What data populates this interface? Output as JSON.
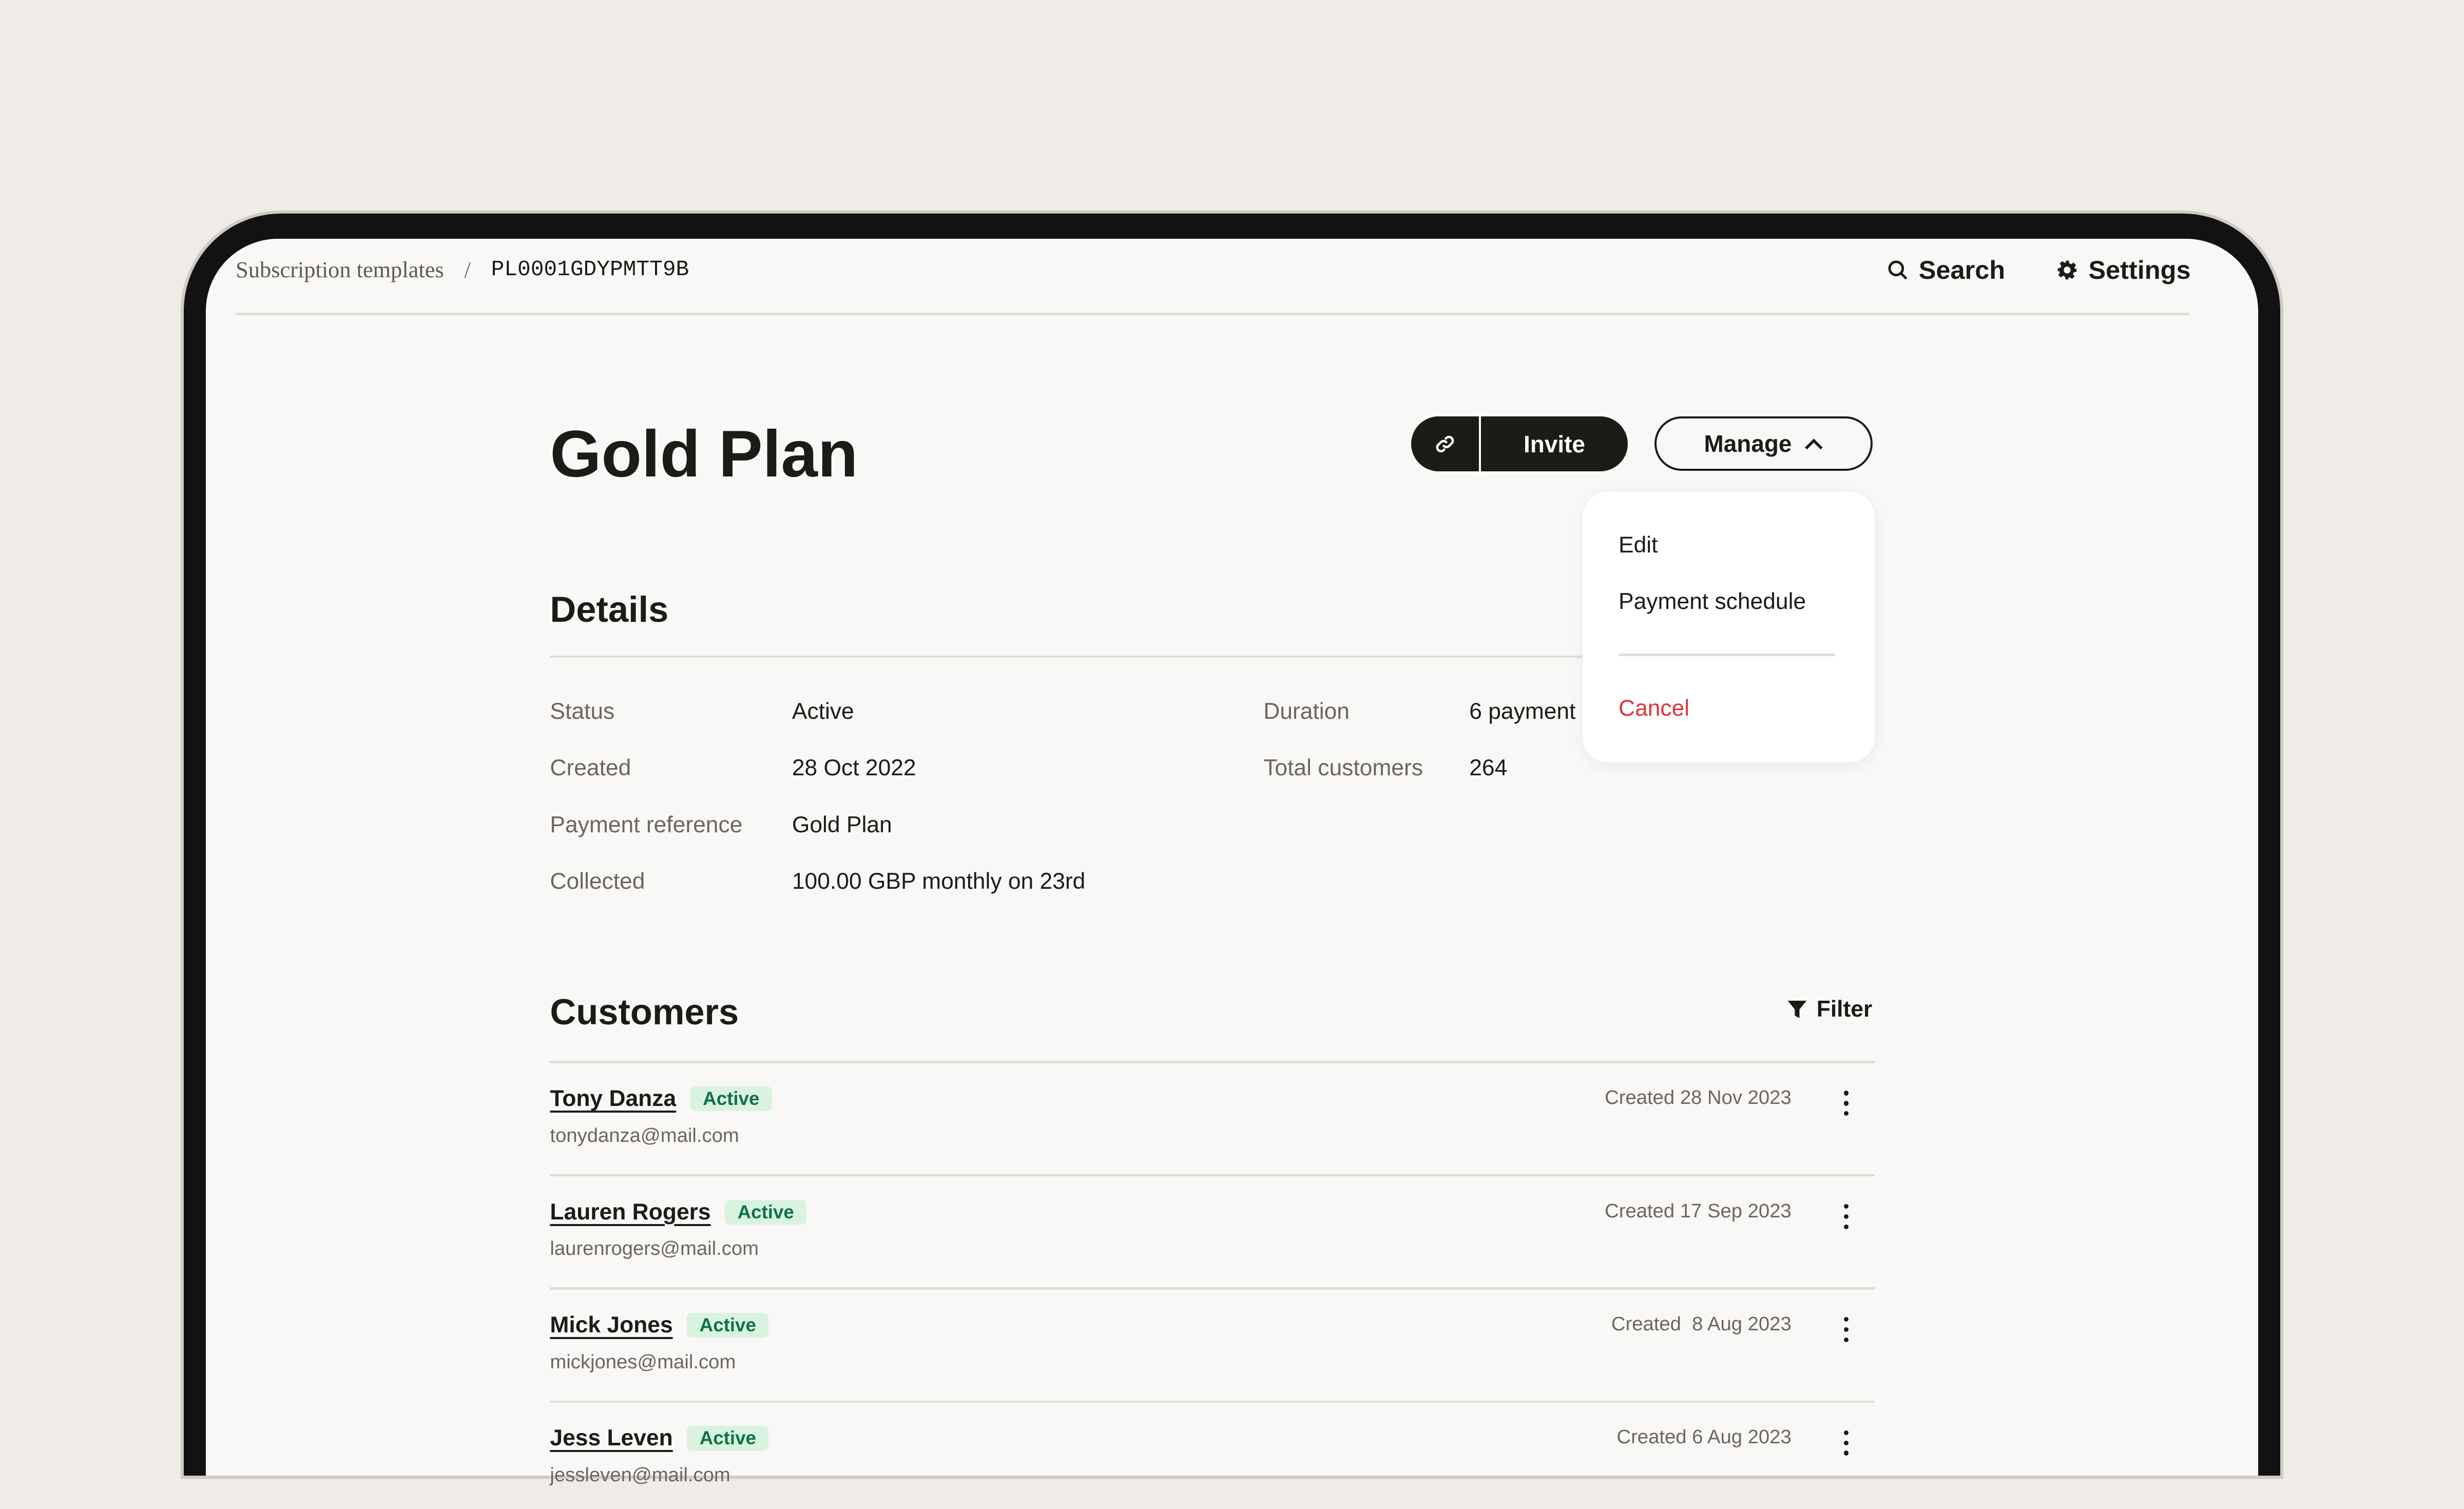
{
  "breadcrumb": {
    "parent": "Subscription templates",
    "separator": "/",
    "current": "PL0001GDYPMTT9B"
  },
  "topbar": {
    "search_label": "Search",
    "settings_label": "Settings"
  },
  "page": {
    "title": "Gold Plan"
  },
  "actions": {
    "invite_label": "Invite",
    "manage_label": "Manage"
  },
  "manage_menu": {
    "items": [
      "Edit",
      "Payment schedule"
    ],
    "danger_item": "Cancel",
    "danger_color": "#d9363e"
  },
  "details": {
    "heading": "Details",
    "left": [
      {
        "label": "Status",
        "value": "Active"
      },
      {
        "label": "Created",
        "value": "28 Oct 2022"
      },
      {
        "label": "Payment reference",
        "value": "Gold Plan"
      },
      {
        "label": "Collected",
        "value": "100.00 GBP monthly on 23rd"
      }
    ],
    "right": [
      {
        "label": "Duration",
        "value": "6 payment"
      },
      {
        "label": "Total customers",
        "value": "264"
      }
    ]
  },
  "customers": {
    "heading": "Customers",
    "filter_label": "Filter",
    "rows": [
      {
        "name": "Tony Danza",
        "status": "Active",
        "email": "tonydanza@mail.com",
        "created": "Created 28 Nov 2023"
      },
      {
        "name": "Lauren Rogers",
        "status": "Active",
        "email": "laurenrogers@mail.com",
        "created": "Created 17 Sep 2023"
      },
      {
        "name": "Mick Jones",
        "status": "Active",
        "email": "mickjones@mail.com",
        "created": "Created  8 Aug 2023"
      },
      {
        "name": "Jess Leven",
        "status": "Active",
        "email": "jessleven@mail.com",
        "created": "Created 6 Aug 2023"
      }
    ]
  },
  "colors": {
    "badge_bg": "#daf3df",
    "badge_text": "#11714a",
    "primary": "#1c1b18"
  }
}
